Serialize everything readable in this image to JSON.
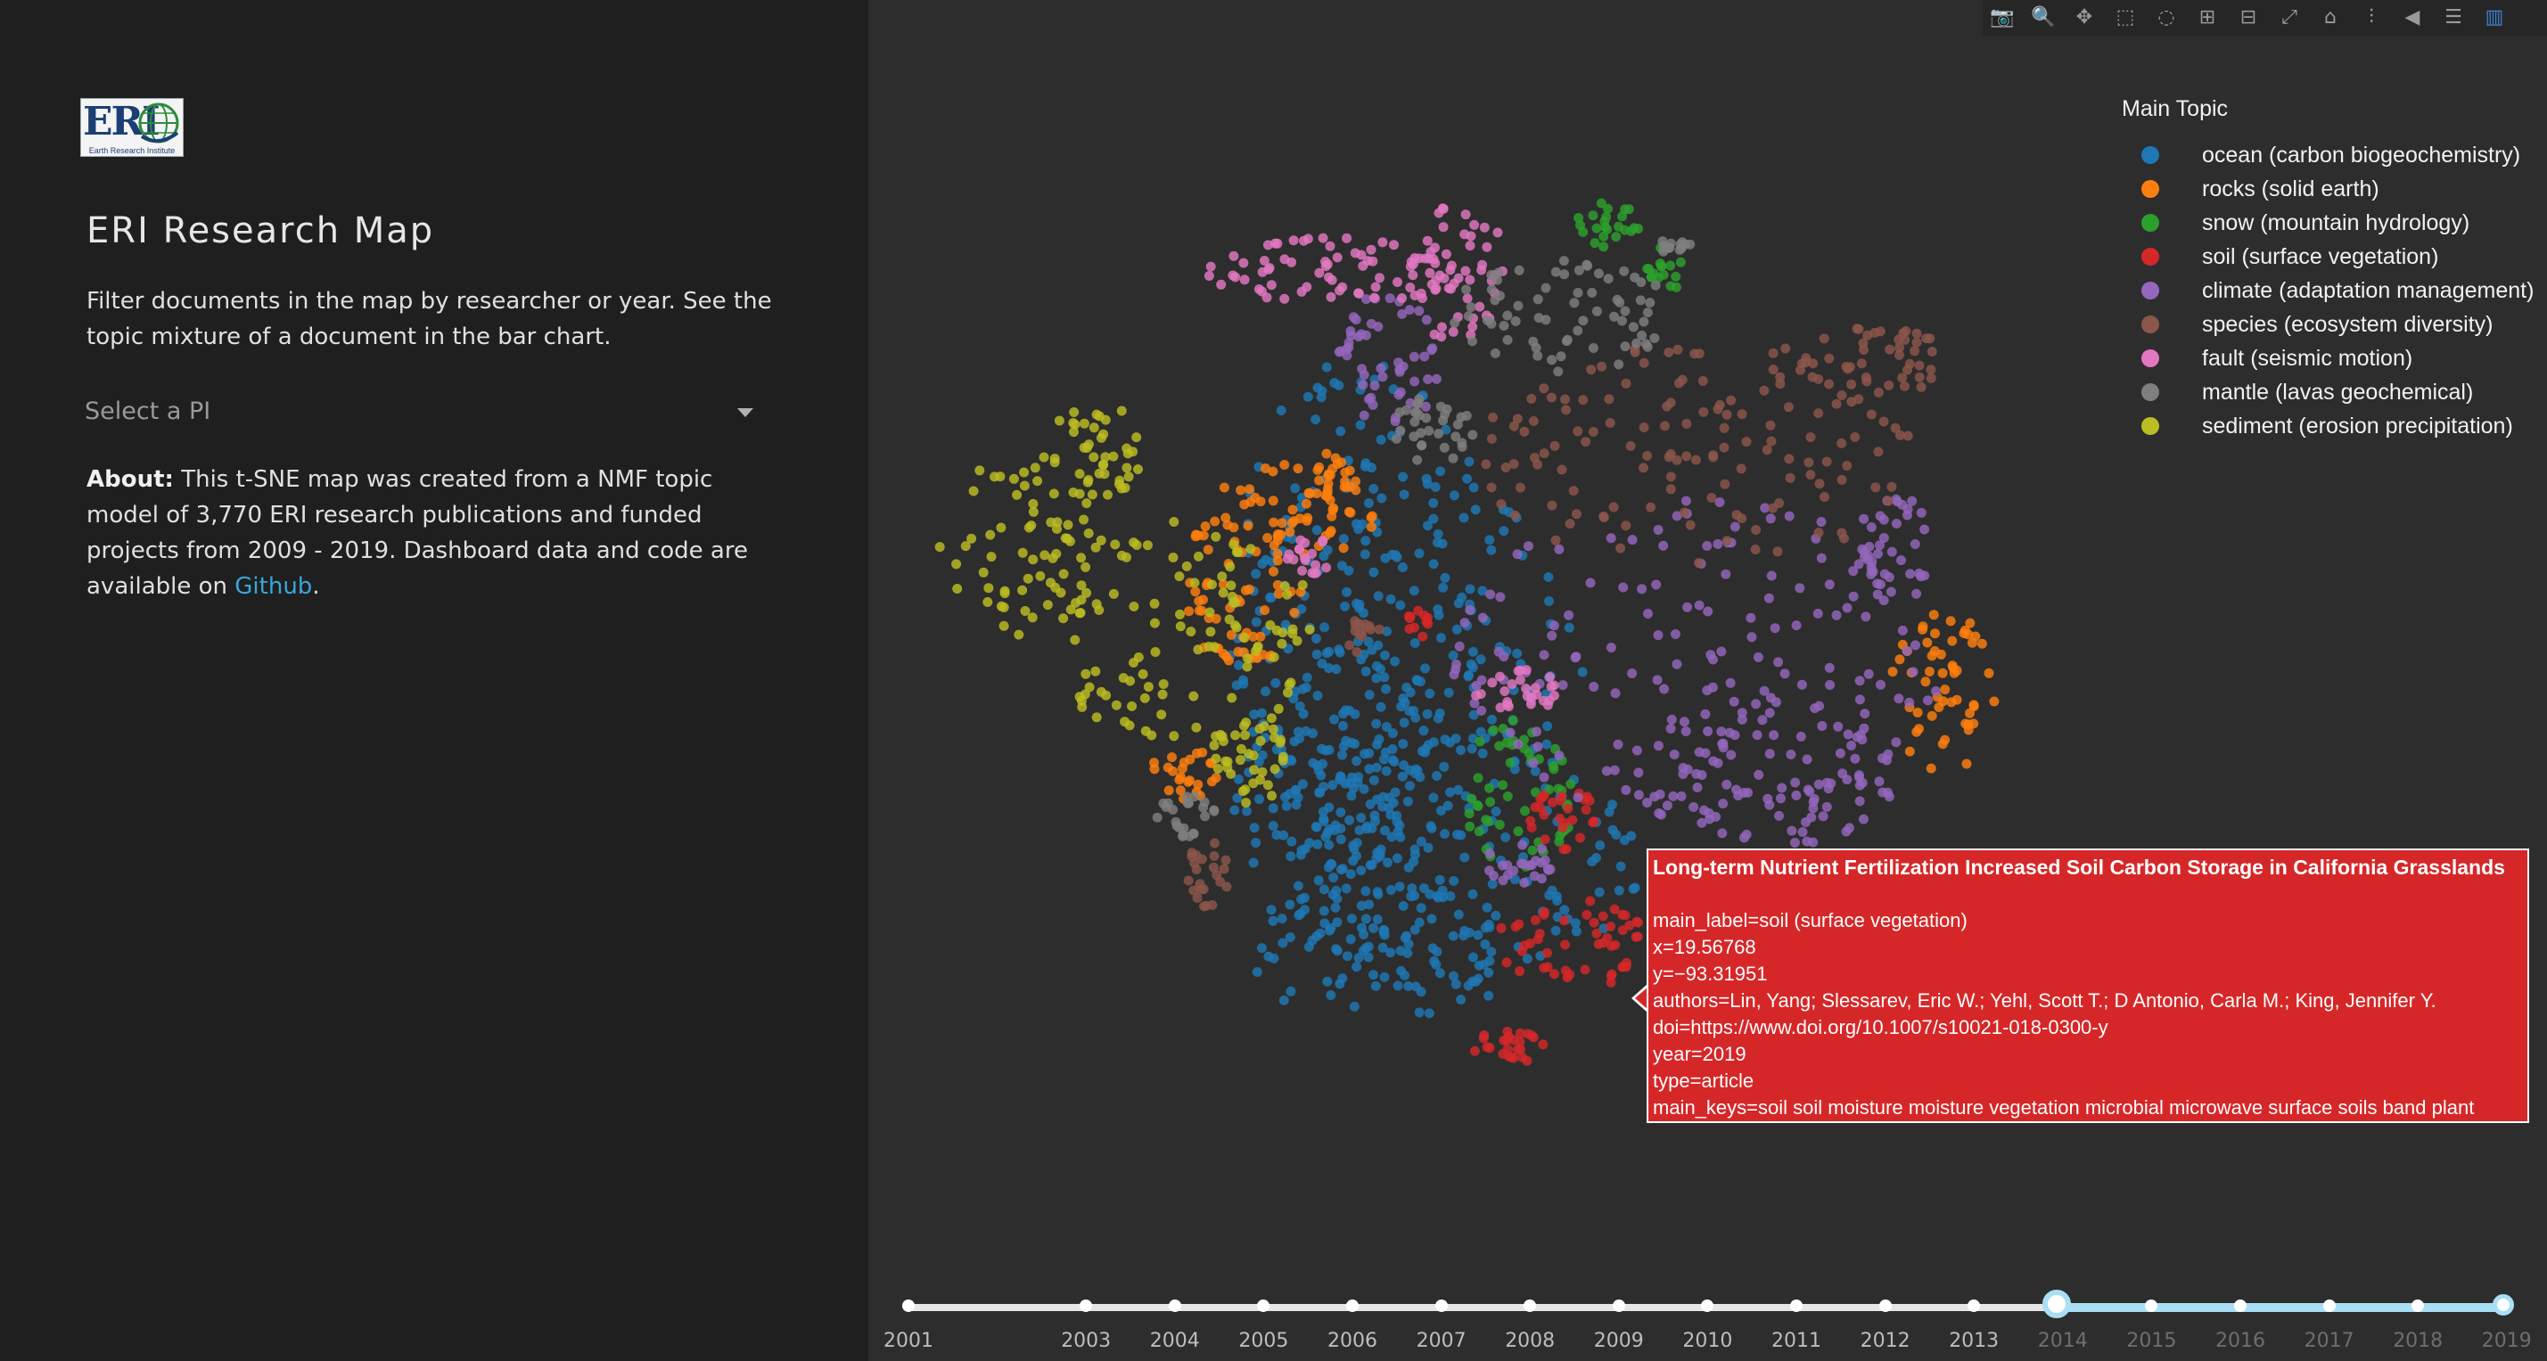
{
  "sidebar": {
    "logo_text": "ERI",
    "logo_tagline": "Earth Research Institute",
    "title": "ERI Research Map",
    "description": "Filter documents in the map by researcher or year. See the topic mixture of a document in the bar chart.",
    "pi_select": {
      "placeholder": "Select a PI"
    },
    "about": {
      "label": "About:",
      "text": "This t-SNE map was created from a NMF topic model of 3,770 ERI research publications and funded projects from 2009 - 2019. Dashboard data and code are available on",
      "link_text": "Github",
      "trailing": "."
    }
  },
  "modebar": {
    "icons": [
      "camera-icon",
      "zoom-icon",
      "pan-icon",
      "box-select-icon",
      "lasso-icon",
      "zoom-in-icon",
      "zoom-out-icon",
      "autoscale-icon",
      "home-icon",
      "spike-lines-icon",
      "hover-closest-icon",
      "hover-compare-icon",
      "plotly-logo-icon"
    ]
  },
  "legend": {
    "title": "Main Topic",
    "items": [
      {
        "label": "ocean (carbon biogeochemistry)",
        "color": "#1f77b4"
      },
      {
        "label": "rocks (solid earth)",
        "color": "#ff7f0e"
      },
      {
        "label": "snow (mountain hydrology)",
        "color": "#2ca02c"
      },
      {
        "label": "soil (surface vegetation)",
        "color": "#d62728"
      },
      {
        "label": "climate (adaptation management)",
        "color": "#9467bd"
      },
      {
        "label": "species (ecosystem diversity)",
        "color": "#8c564b"
      },
      {
        "label": "fault (seismic motion)",
        "color": "#e377c2"
      },
      {
        "label": "mantle (lavas geochemical)",
        "color": "#7f7f7f"
      },
      {
        "label": "sediment (erosion precipitation)",
        "color": "#bcbd22"
      }
    ]
  },
  "tooltip": {
    "title": "Long-term Nutrient Fertilization Increased Soil Carbon Storage in California Grasslands",
    "main_label": "main_label=soil (surface vegetation)",
    "x": "x=19.56768",
    "y": "y=−93.31951",
    "authors": "authors=Lin, Yang; Slessarev, Eric W.; Yehl, Scott T.; D   Antonio, Carla M.; King, Jennifer Y.",
    "doi": "doi=https://www.doi.org/10.1007/s10021-018-0300-y",
    "year": "year=2019",
    "type": "type=article",
    "main_keys": "main_keys=soil soil moisture moisture vegetation microbial microwave surface soils band plant"
  },
  "year_slider": {
    "years": [
      "2001",
      "2003",
      "2004",
      "2005",
      "2006",
      "2007",
      "2008",
      "2009",
      "2010",
      "2011",
      "2012",
      "2013",
      "2014",
      "2015",
      "2016",
      "2017",
      "2018",
      "2019"
    ],
    "range_start": "2014",
    "range_end": "2019"
  },
  "chart_data": {
    "type": "scatter",
    "title": "",
    "xlabel": "",
    "ylabel": "",
    "grid": false,
    "legend_placement": "top-right",
    "series": [
      {
        "name": "ocean (carbon biogeochemistry)",
        "clusters": [
          [
            50,
            45,
            60,
            120
          ],
          [
            70,
            30,
            80,
            90
          ],
          [
            40,
            -20,
            50,
            70
          ],
          [
            95,
            -60,
            80,
            60
          ],
          [
            55,
            -95,
            60,
            35
          ]
        ]
      },
      {
        "name": "rocks (solid earth)",
        "clusters": [
          [
            20,
            95,
            40,
            20
          ],
          [
            -5,
            60,
            30,
            35
          ],
          [
            310,
            15,
            25,
            35
          ],
          [
            -30,
            -20,
            15,
            12
          ],
          [
            35,
            110,
            10,
            10
          ]
        ]
      },
      {
        "name": "snow (mountain hydrology)",
        "clusters": [
          [
            160,
            220,
            15,
            10
          ],
          [
            185,
            200,
            8,
            12
          ],
          [
            120,
            -30,
            25,
            35
          ]
        ]
      },
      {
        "name": "soil (surface vegetation)",
        "clusters": [
          [
            145,
            -95,
            35,
            20
          ],
          [
            115,
            -140,
            20,
            8
          ],
          [
            140,
            -40,
            15,
            15
          ],
          [
            75,
            45,
            6,
            6
          ]
        ]
      },
      {
        "name": "climate (adaptation management)",
        "clusters": [
          [
            200,
            30,
            110,
            70
          ],
          [
            230,
            -20,
            60,
            35
          ],
          [
            60,
            160,
            25,
            30
          ],
          [
            120,
            -60,
            15,
            10
          ],
          [
            290,
            80,
            20,
            20
          ]
        ]
      },
      {
        "name": "species (ecosystem diversity)",
        "clusters": [
          [
            200,
            120,
            100,
            50
          ],
          [
            280,
            160,
            35,
            15
          ],
          [
            50,
            40,
            8,
            8
          ],
          [
            -20,
            -65,
            10,
            15
          ]
        ]
      },
      {
        "name": "fault (seismic motion)",
        "clusters": [
          [
            40,
            200,
            60,
            15
          ],
          [
            90,
            200,
            25,
            30
          ],
          [
            120,
            15,
            20,
            10
          ],
          [
            25,
            75,
            10,
            10
          ]
        ]
      },
      {
        "name": "mantle (lavas geochemical)",
        "clusters": [
          [
            140,
            180,
            50,
            25
          ],
          [
            80,
            130,
            20,
            15
          ],
          [
            -30,
            -40,
            15,
            10
          ],
          [
            190,
            210,
            8,
            5
          ]
        ]
      },
      {
        "name": "sediment (erosion precipitation)",
        "clusters": [
          [
            -30,
            40,
            60,
            50
          ],
          [
            -100,
            80,
            40,
            40
          ],
          [
            -70,
            120,
            20,
            25
          ],
          [
            0,
            -15,
            20,
            20
          ]
        ]
      }
    ]
  }
}
